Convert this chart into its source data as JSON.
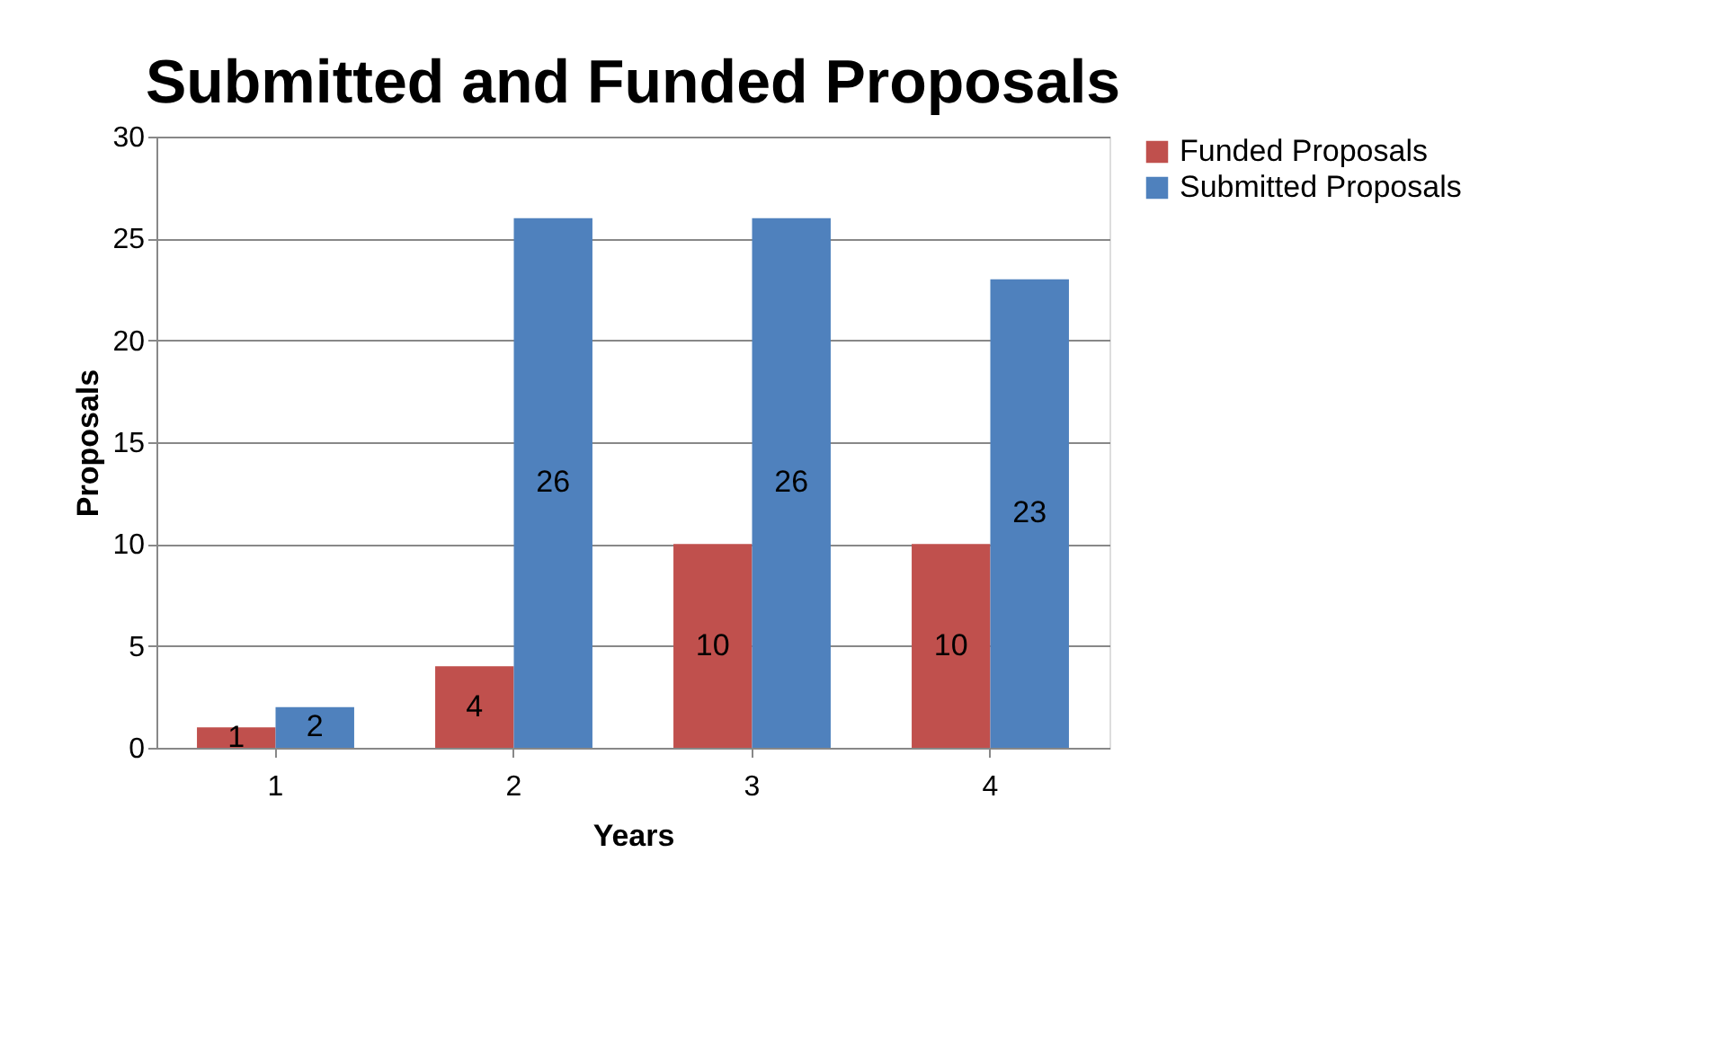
{
  "chart_data": {
    "type": "bar",
    "title": "Submitted and Funded Proposals",
    "xlabel": "Years",
    "ylabel": "Proposals",
    "categories": [
      "1",
      "2",
      "3",
      "4"
    ],
    "series": [
      {
        "name": "Funded Proposals",
        "color": "#c0504d",
        "values": [
          1,
          4,
          10,
          10
        ]
      },
      {
        "name": "Submitted Proposals",
        "color": "#4f81bd",
        "values": [
          2,
          26,
          26,
          23
        ]
      }
    ],
    "ylim": [
      0,
      30
    ],
    "yticks": [
      0,
      5,
      10,
      15,
      20,
      25,
      30
    ],
    "grid": "y",
    "legend": "right",
    "data_labels": true
  }
}
